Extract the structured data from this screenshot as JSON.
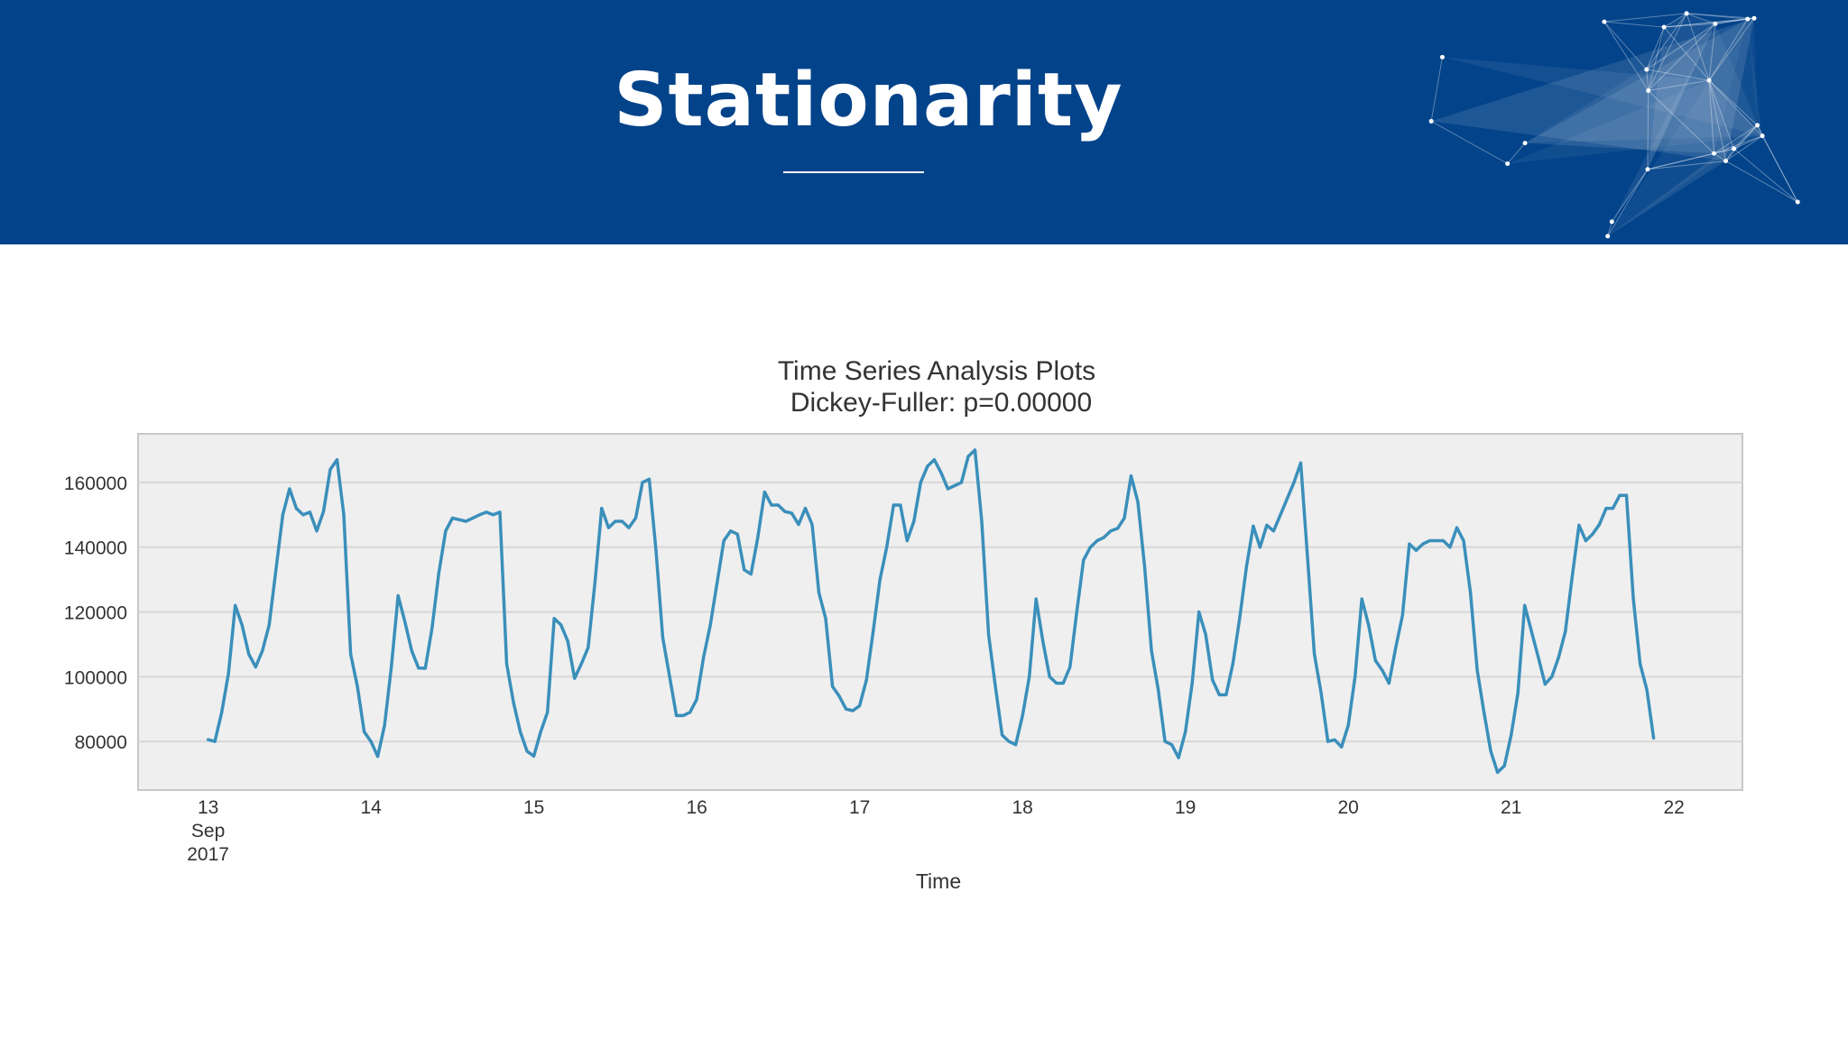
{
  "slide": {
    "title": "Stationarity",
    "banner_color": "#03438a"
  },
  "chart_data": {
    "type": "line",
    "title": "Time Series Analysis Plots",
    "subtitle": "Dickey-Fuller: p=0.00000",
    "xlabel": "Time",
    "ylabel": "",
    "x_range_days": [
      12.57,
      22.42
    ],
    "ylim": [
      65000,
      175000
    ],
    "y_ticks": [
      80000,
      100000,
      120000,
      140000,
      160000
    ],
    "x_ticks": [
      {
        "day": 13,
        "lines": [
          "13",
          "Sep",
          "2017"
        ]
      },
      {
        "day": 14,
        "lines": [
          "14"
        ]
      },
      {
        "day": 15,
        "lines": [
          "15"
        ]
      },
      {
        "day": 16,
        "lines": [
          "16"
        ]
      },
      {
        "day": 17,
        "lines": [
          "17"
        ]
      },
      {
        "day": 18,
        "lines": [
          "18"
        ]
      },
      {
        "day": 19,
        "lines": [
          "19"
        ]
      },
      {
        "day": 20,
        "lines": [
          "20"
        ]
      },
      {
        "day": 21,
        "lines": [
          "21"
        ]
      },
      {
        "day": 22,
        "lines": [
          "22"
        ]
      }
    ],
    "grid": true,
    "line_color": "#3a8fbb",
    "plot_background": "#efefef",
    "series": [
      {
        "name": "",
        "start": "2017-09-13 00:00",
        "interval": "1H",
        "values": [
          80600,
          80000,
          89000,
          101000,
          122000,
          116000,
          107000,
          103000,
          108000,
          116000,
          133000,
          150000,
          158000,
          152000,
          150000,
          150800,
          145000,
          151000,
          164000,
          167000,
          150000,
          107000,
          97000,
          83000,
          80000,
          75400,
          85000,
          103000,
          125000,
          117000,
          108000,
          102700,
          102600,
          115000,
          132000,
          145000,
          149000,
          148500,
          148000,
          149000,
          150000,
          150800,
          150000,
          150800,
          104000,
          92000,
          83000,
          77000,
          75500,
          83000,
          89000,
          118000,
          116000,
          111000,
          99500,
          104000,
          109000,
          129000,
          152000,
          146000,
          148000,
          148000,
          146000,
          149000,
          160000,
          161000,
          139000,
          112000,
          100000,
          88000,
          88000,
          89000,
          93000,
          106000,
          116000,
          129000,
          142000,
          145000,
          144000,
          133000,
          131700,
          143000,
          157000,
          153000,
          153000,
          151000,
          150500,
          147000,
          152000,
          147000,
          126000,
          118000,
          97000,
          94000,
          90000,
          89500,
          91000,
          99000,
          114000,
          130000,
          140000,
          153000,
          153000,
          142000,
          148000,
          160000,
          165000,
          167000,
          163000,
          158000,
          159000,
          160000,
          168000,
          170000,
          148000,
          113000,
          97000,
          82000,
          80000,
          79000,
          88000,
          100000,
          124000,
          111000,
          100000,
          98000,
          98000,
          103000,
          120000,
          136000,
          140000,
          142000,
          143000,
          145000,
          145800,
          149000,
          162000,
          154000,
          134000,
          108000,
          96000,
          80000,
          79000,
          75000,
          83000,
          98000,
          120000,
          113000,
          99000,
          94400,
          94400,
          104000,
          118000,
          134000,
          146500,
          140000,
          146800,
          145000,
          150000,
          155000,
          160000,
          166000,
          137000,
          107000,
          95000,
          80000,
          80500,
          78300,
          85000,
          100000,
          124000,
          116000,
          105000,
          102000,
          98000,
          109000,
          119000,
          141000,
          139000,
          141000,
          142000,
          142000,
          142000,
          140000,
          146000,
          142000,
          126000,
          102000,
          89000,
          77000,
          70500,
          72500,
          82000,
          95000,
          122000,
          114000,
          106000,
          97700,
          100000,
          106000,
          114000,
          131000,
          146800,
          142000,
          144000,
          147000,
          152000,
          152000,
          156000,
          156000,
          124000,
          104000,
          96000,
          81000
        ]
      }
    ]
  }
}
